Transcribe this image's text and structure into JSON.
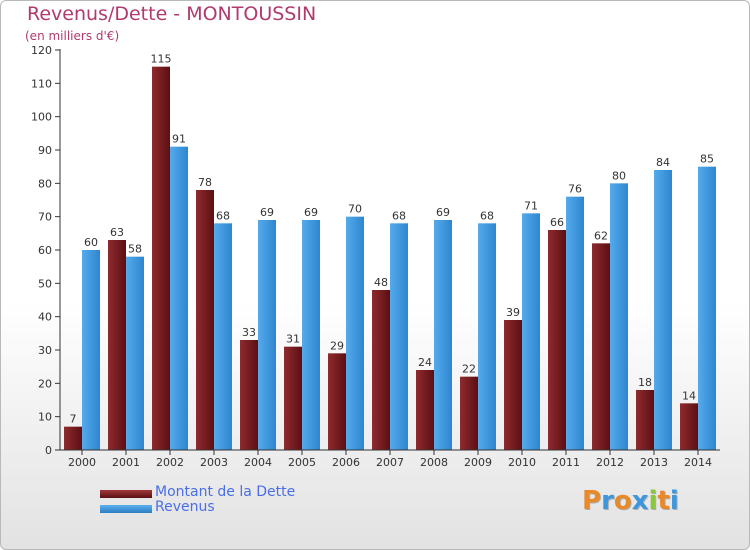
{
  "title": "Revenus/Dette - MONTOUSSIN",
  "subtitle": "(en milliers d'€)",
  "logo_text": "Proxiti",
  "colors": {
    "dette": "#7a1e22",
    "revenus": "#3d97dd",
    "title": "#b03a6e"
  },
  "chart_data": {
    "type": "bar",
    "title": "Revenus/Dette - MONTOUSSIN",
    "subtitle": "(en milliers d'€)",
    "categories": [
      "2000",
      "2001",
      "2002",
      "2003",
      "2004",
      "2005",
      "2006",
      "2007",
      "2008",
      "2009",
      "2010",
      "2011",
      "2012",
      "2013",
      "2014"
    ],
    "series": [
      {
        "name": "Montant de la Dette",
        "color": "#7a1e22",
        "values": [
          7,
          63,
          115,
          78,
          33,
          31,
          29,
          48,
          24,
          22,
          39,
          66,
          62,
          18,
          14
        ]
      },
      {
        "name": "Revenus",
        "color": "#3d97dd",
        "values": [
          60,
          58,
          91,
          68,
          69,
          69,
          70,
          68,
          69,
          68,
          71,
          76,
          80,
          84,
          85
        ]
      }
    ],
    "yticks": [
      0,
      10,
      20,
      30,
      40,
      50,
      60,
      70,
      80,
      90,
      100,
      110,
      120
    ],
    "ylim": [
      0,
      120
    ],
    "grid": false,
    "legend": "bottom-left"
  }
}
